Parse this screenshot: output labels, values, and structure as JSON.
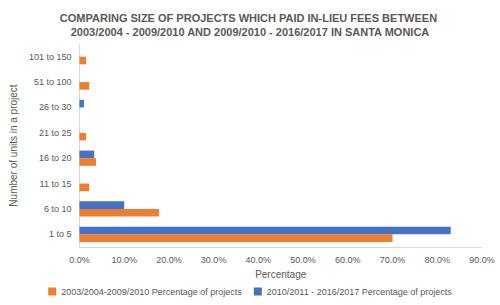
{
  "chart_data": {
    "type": "bar",
    "orientation": "horizontal",
    "title": "COMPARING SIZE OF PROJECTS WHICH PAID IN-LIEU FEES BETWEEN 2003/2004 - 2009/2010 AND 2009/2010 - 2016/2017 IN SANTA MONICA",
    "x_label": "Percentage",
    "y_label": "Number of units in a project",
    "categories": [
      "1 to 5",
      "6 to 10",
      "11 to 15",
      "16 to 20",
      "21 to 25",
      "26 to 30",
      "51 to 100",
      "101 to 150"
    ],
    "series": [
      {
        "name": "2003/2004-2009/2010 Percentage of projects",
        "color": "#ED7D31",
        "values": [
          70.0,
          17.8,
          2.2,
          3.7,
          1.5,
          0,
          2.2,
          1.5
        ]
      },
      {
        "name": "2010/2011 - 2016/2017 Percentage of projects",
        "color": "#4472C4",
        "values": [
          83.0,
          10.0,
          0,
          3.3,
          0,
          1.0,
          0,
          0
        ]
      }
    ],
    "xlim": [
      0,
      90
    ],
    "xticks": [
      {
        "value": 0,
        "label": "0.0%"
      },
      {
        "value": 10,
        "label": "10.0%"
      },
      {
        "value": 20,
        "label": "20.0%"
      },
      {
        "value": 30,
        "label": "30.0%"
      },
      {
        "value": 40,
        "label": "40.0%"
      },
      {
        "value": 50,
        "label": "50.0%"
      },
      {
        "value": 60,
        "label": "60.0%"
      },
      {
        "value": 70,
        "label": "70.0%"
      },
      {
        "value": 80,
        "label": "80.0%"
      },
      {
        "value": 90,
        "label": "90.0%"
      }
    ],
    "grid": false,
    "legend": "bottom",
    "data_labels": false
  }
}
